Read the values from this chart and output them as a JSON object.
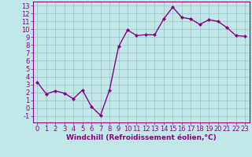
{
  "x": [
    0,
    1,
    2,
    3,
    4,
    5,
    6,
    7,
    8,
    9,
    10,
    11,
    12,
    13,
    14,
    15,
    16,
    17,
    18,
    19,
    20,
    21,
    22,
    23
  ],
  "y": [
    3.3,
    1.8,
    2.2,
    1.9,
    1.2,
    2.3,
    0.2,
    -0.9,
    2.3,
    7.8,
    9.9,
    9.2,
    9.3,
    9.3,
    11.3,
    12.8,
    11.5,
    11.3,
    10.6,
    11.2,
    11.0,
    10.2,
    9.2,
    9.1
  ],
  "line_color": "#8b008b",
  "marker": "D",
  "marker_size": 2.0,
  "bg_color": "#c0e8e8",
  "grid_color": "#9fbfbf",
  "xlabel": "Windchill (Refroidissement éolien,°C)",
  "xlabel_fontsize": 6.5,
  "ylabel_ticks": [
    -1,
    0,
    1,
    2,
    3,
    4,
    5,
    6,
    7,
    8,
    9,
    10,
    11,
    12,
    13
  ],
  "xlim": [
    -0.5,
    23.5
  ],
  "ylim": [
    -1.8,
    13.5
  ],
  "tick_fontsize": 6,
  "line_width": 1.0
}
